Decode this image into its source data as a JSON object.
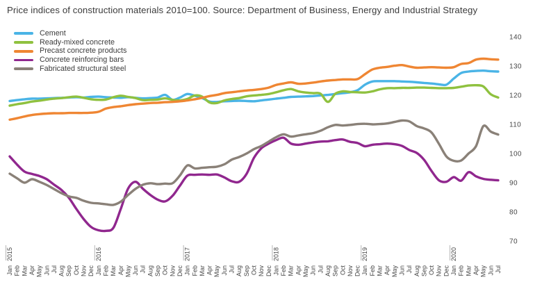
{
  "title": "Price indices of construction materials 2010=100. Source: Department of Business, Energy and Industrial Strategy",
  "chart_data": {
    "type": "line",
    "title": "Price indices of construction materials 2010=100. Source: Department of Business, Energy and Industrial Strategy",
    "grid": false,
    "legend_position": "top-left",
    "x_axis": {
      "unit": "month",
      "start": "Jan 2015",
      "end": "Jul 2020",
      "month_labels": [
        "Jan",
        "Feb",
        "Mar",
        "Apr",
        "May",
        "Jun",
        "Jul",
        "Aug",
        "Sep",
        "Oct",
        "Nov",
        "Dec"
      ],
      "year_labels": [
        "2015",
        "2016",
        "2017",
        "2018",
        "2019",
        "2020"
      ],
      "n_points": 67
    },
    "y_axis": {
      "side": "right",
      "ticks": [
        140,
        130,
        120,
        110,
        100,
        90,
        80,
        70
      ],
      "range": [
        67,
        143
      ]
    },
    "series": [
      {
        "id": "cement",
        "name": "Cement",
        "color": "#4ab4e6",
        "values": [
          118.0,
          118.3,
          118.6,
          118.8,
          118.8,
          118.9,
          119.0,
          119.1,
          119.2,
          119.3,
          119.2,
          119.4,
          119.5,
          119.3,
          119.2,
          119.1,
          119.3,
          119.1,
          118.9,
          119.0,
          119.2,
          120.1,
          118.4,
          119.2,
          120.4,
          119.8,
          119.0,
          117.8,
          117.7,
          117.9,
          118.0,
          118.1,
          118.0,
          117.9,
          118.2,
          118.5,
          118.8,
          119.1,
          119.4,
          119.5,
          119.6,
          119.7,
          119.9,
          120.1,
          120.4,
          120.7,
          121.0,
          121.7,
          123.6,
          124.7,
          124.8,
          124.8,
          124.8,
          124.7,
          124.6,
          124.4,
          124.2,
          124.0,
          123.7,
          123.6,
          125.7,
          127.6,
          128.1,
          128.3,
          128.4,
          128.2,
          128.1
        ]
      },
      {
        "id": "ready-mixed-concrete",
        "name": "Ready-mixed concrete",
        "color": "#8fc13f",
        "values": [
          116.4,
          116.9,
          117.3,
          117.8,
          118.1,
          118.5,
          118.8,
          119.0,
          119.3,
          119.5,
          119.1,
          118.6,
          118.4,
          118.5,
          119.3,
          119.8,
          119.4,
          119.0,
          118.3,
          118.4,
          118.5,
          118.9,
          118.4,
          118.2,
          118.7,
          119.9,
          119.5,
          117.5,
          117.3,
          118.2,
          118.7,
          119.0,
          119.6,
          119.9,
          120.1,
          120.4,
          121.0,
          121.7,
          122.1,
          121.3,
          120.9,
          120.7,
          120.5,
          117.7,
          120.5,
          121.3,
          121.1,
          121.0,
          120.9,
          121.3,
          122.0,
          122.4,
          122.4,
          122.5,
          122.5,
          122.6,
          122.6,
          122.5,
          122.4,
          122.4,
          122.5,
          122.9,
          123.3,
          123.4,
          123.0,
          120.3,
          119.2
        ]
      },
      {
        "id": "precast-concrete-products",
        "name": "Precast concrete products",
        "color": "#ef8633",
        "values": [
          111.6,
          112.1,
          112.7,
          113.2,
          113.5,
          113.7,
          113.8,
          113.8,
          113.9,
          113.9,
          113.9,
          114.0,
          114.3,
          115.4,
          115.9,
          116.2,
          116.6,
          116.9,
          117.1,
          117.3,
          117.4,
          117.6,
          117.7,
          117.9,
          118.2,
          118.6,
          119.1,
          119.7,
          120.1,
          120.7,
          121.0,
          121.3,
          121.6,
          121.8,
          122.1,
          122.6,
          123.5,
          124.0,
          124.4,
          123.9,
          124.0,
          124.3,
          124.7,
          125.0,
          125.2,
          125.4,
          125.4,
          125.5,
          127.2,
          128.8,
          129.4,
          129.7,
          130.1,
          130.3,
          129.8,
          129.4,
          129.5,
          129.6,
          129.5,
          129.4,
          129.6,
          130.7,
          131.0,
          132.2,
          132.5,
          132.3,
          132.2
        ]
      },
      {
        "id": "concrete-reinforcing-bars",
        "name": "Concrete reinforcing bars",
        "color": "#90278e",
        "values": [
          99.0,
          96.2,
          93.8,
          93.0,
          92.3,
          91.2,
          89.3,
          87.5,
          84.8,
          81.0,
          77.5,
          74.8,
          73.7,
          73.5,
          74.5,
          81.0,
          88.0,
          90.3,
          87.9,
          85.8,
          84.2,
          83.6,
          85.5,
          89.0,
          92.4,
          92.7,
          92.8,
          92.7,
          92.8,
          91.8,
          90.5,
          90.3,
          93.0,
          98.5,
          101.8,
          103.4,
          104.6,
          105.4,
          103.4,
          103.0,
          103.4,
          103.8,
          104.1,
          104.2,
          104.6,
          104.8,
          104.0,
          103.6,
          102.5,
          103.0,
          103.2,
          103.4,
          103.2,
          102.6,
          101.2,
          100.2,
          97.8,
          94.0,
          90.8,
          90.3,
          91.9,
          90.7,
          93.6,
          92.2,
          91.3,
          91.0,
          90.8
        ]
      },
      {
        "id": "fabricated-structural-steel",
        "name": "Fabricated structural steel",
        "color": "#8a8178",
        "values": [
          93.1,
          91.5,
          90.0,
          91.2,
          90.3,
          89.2,
          87.8,
          86.4,
          85.3,
          84.8,
          83.8,
          83.1,
          82.9,
          82.6,
          82.4,
          83.5,
          85.8,
          87.9,
          89.3,
          89.8,
          89.5,
          89.7,
          89.8,
          92.5,
          95.9,
          94.9,
          95.1,
          95.3,
          95.5,
          96.3,
          97.9,
          98.8,
          100.0,
          101.5,
          102.6,
          104.1,
          105.6,
          106.6,
          105.8,
          106.2,
          106.6,
          107.0,
          107.8,
          109.0,
          109.8,
          109.6,
          109.8,
          110.1,
          110.2,
          110.0,
          110.1,
          110.3,
          110.8,
          111.3,
          111.0,
          109.4,
          108.6,
          107.2,
          103.3,
          99.0,
          97.5,
          97.6,
          100.0,
          102.5,
          109.4,
          107.5,
          106.5
        ]
      }
    ]
  }
}
